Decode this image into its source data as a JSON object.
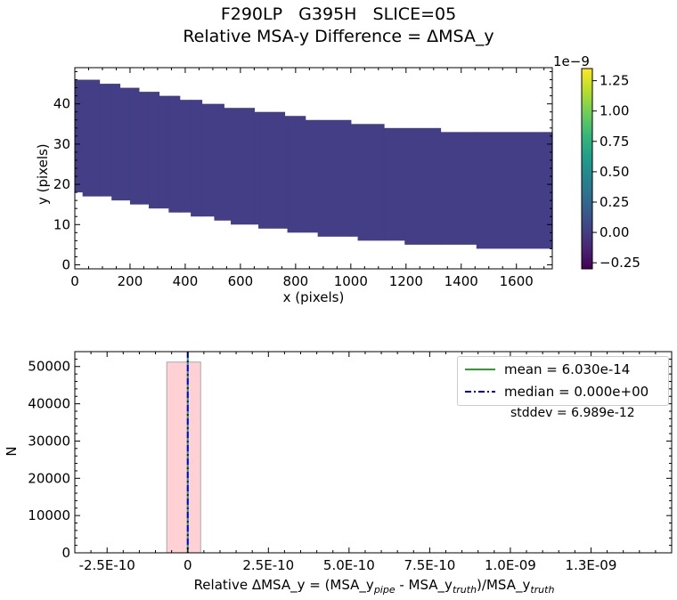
{
  "figure": {
    "title_line1": "F290LP   G395H   SLICE=05",
    "title_line2": "Relative MSA-y Difference = ΔMSA_y"
  },
  "chart_data": [
    {
      "type": "heatmap",
      "xlabel": "x (pixels)",
      "ylabel": "y (pixels)",
      "xlim": [
        0,
        1730
      ],
      "ylim": [
        -1,
        49
      ],
      "xticks": [
        0,
        200,
        400,
        600,
        800,
        1000,
        1200,
        1400,
        1600
      ],
      "yticks": [
        0,
        10,
        20,
        30,
        40
      ],
      "fill_color": "#433e85",
      "region_steps": [
        {
          "x0": 0,
          "x1": 28,
          "y0": 18,
          "y1": 46
        },
        {
          "x0": 28,
          "x1": 89,
          "y0": 17,
          "y1": 46
        },
        {
          "x0": 89,
          "x1": 133,
          "y0": 17,
          "y1": 45
        },
        {
          "x0": 133,
          "x1": 163,
          "y0": 16,
          "y1": 45
        },
        {
          "x0": 163,
          "x1": 200,
          "y0": 16,
          "y1": 44
        },
        {
          "x0": 200,
          "x1": 232,
          "y0": 15,
          "y1": 44
        },
        {
          "x0": 232,
          "x1": 268,
          "y0": 15,
          "y1": 43
        },
        {
          "x0": 268,
          "x1": 305,
          "y0": 14,
          "y1": 43
        },
        {
          "x0": 305,
          "x1": 340,
          "y0": 14,
          "y1": 42
        },
        {
          "x0": 340,
          "x1": 380,
          "y0": 13,
          "y1": 42
        },
        {
          "x0": 380,
          "x1": 420,
          "y0": 13,
          "y1": 41
        },
        {
          "x0": 420,
          "x1": 460,
          "y0": 12,
          "y1": 41
        },
        {
          "x0": 460,
          "x1": 505,
          "y0": 12,
          "y1": 40
        },
        {
          "x0": 505,
          "x1": 540,
          "y0": 11,
          "y1": 40
        },
        {
          "x0": 540,
          "x1": 565,
          "y0": 11,
          "y1": 39
        },
        {
          "x0": 565,
          "x1": 650,
          "y0": 10,
          "y1": 39
        },
        {
          "x0": 650,
          "x1": 665,
          "y0": 10,
          "y1": 38
        },
        {
          "x0": 665,
          "x1": 760,
          "y0": 9,
          "y1": 38
        },
        {
          "x0": 760,
          "x1": 770,
          "y0": 9,
          "y1": 37
        },
        {
          "x0": 770,
          "x1": 835,
          "y0": 8,
          "y1": 37
        },
        {
          "x0": 835,
          "x1": 880,
          "y0": 8,
          "y1": 36
        },
        {
          "x0": 880,
          "x1": 1000,
          "y0": 7,
          "y1": 36
        },
        {
          "x0": 1000,
          "x1": 1025,
          "y0": 7,
          "y1": 35
        },
        {
          "x0": 1025,
          "x1": 1120,
          "y0": 6,
          "y1": 35
        },
        {
          "x0": 1120,
          "x1": 1195,
          "y0": 6,
          "y1": 34
        },
        {
          "x0": 1195,
          "x1": 1325,
          "y0": 5,
          "y1": 34
        },
        {
          "x0": 1325,
          "x1": 1455,
          "y0": 5,
          "y1": 33
        },
        {
          "x0": 1455,
          "x1": 1730,
          "y0": 4,
          "y1": 33
        }
      ],
      "colorbar": {
        "colormap": "viridis",
        "vmin": -0.3,
        "vmax": 1.35,
        "ticks": [
          1.25,
          1.0,
          0.75,
          0.5,
          0.25,
          0.0,
          -0.25
        ],
        "tick_labels": [
          "1.25",
          "1.00",
          "0.75",
          "0.50",
          "0.25",
          "0.00",
          "−0.25"
        ],
        "exponent_label": "1e−9"
      }
    },
    {
      "type": "bar",
      "subtype": "histogram",
      "xlabel_parts": {
        "pre": "Relative ΔMSA_y = (MSA_y",
        "sub1": "pipe",
        "mid": " - MSA_y",
        "sub2": "truth",
        "post": ")/MSA_y",
        "sub3": "truth"
      },
      "ylabel": "N",
      "xlim": [
        -3.5e-10,
        1.5e-09
      ],
      "ylim": [
        0,
        54000
      ],
      "xticks": [
        -2.5e-10,
        0,
        2.5e-10,
        5e-10,
        7.5e-10,
        1e-09,
        1.25e-09
      ],
      "xtick_labels": [
        "-2.5E-10",
        "0",
        "2.5E-10",
        "5.0E-10",
        "7.5E-10",
        "1.0E-09",
        "1.3E-09"
      ],
      "yticks": [
        0,
        10000,
        20000,
        30000,
        40000,
        50000
      ],
      "ytick_labels": [
        "0",
        "10000",
        "20000",
        "30000",
        "40000",
        "50000"
      ],
      "bars": [
        {
          "x0": -6.5e-11,
          "x1": 4e-11,
          "value": 51200
        }
      ],
      "bar_color": "#ffd0d4",
      "bar_edge_color": "#aaaaaa",
      "mean": 6.03e-14,
      "median": 0.0,
      "legend": [
        {
          "label": "mean = 6.030e-14",
          "style": "solid",
          "color": "#2ca02c"
        },
        {
          "label": "median = 0.000e+00",
          "style": "dashdot",
          "color": "#0000ff"
        }
      ],
      "annotation": "stddev = 6.989e-12",
      "legend_position": "top-right"
    }
  ]
}
